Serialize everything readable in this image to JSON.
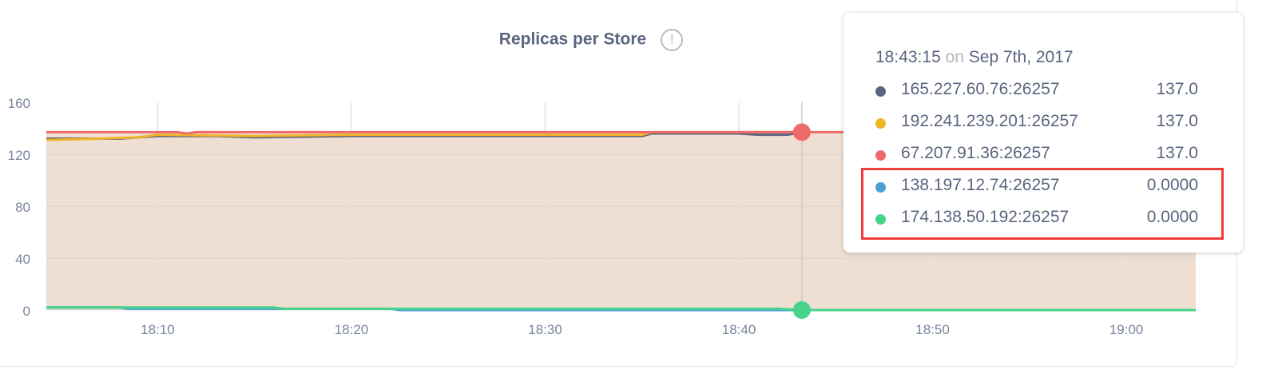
{
  "chart_data": {
    "type": "line",
    "title": "Replicas per Store",
    "title_icon": "info-icon",
    "xlabel": "",
    "ylabel": "",
    "ylim": [
      0,
      160
    ],
    "xlim": [
      "18:04:15",
      "19:03:35"
    ],
    "yticks": [
      "0",
      "40",
      "80",
      "120",
      "160"
    ],
    "xticks": [
      "18:10",
      "18:20",
      "18:30",
      "18:40",
      "18:50",
      "19:00"
    ],
    "grid": true,
    "fill_color": "#efdfd3",
    "series": [
      {
        "name": "165.227.60.76:26257",
        "color": "#5b6580",
        "points": [
          [
            "18:04:15",
            132
          ],
          [
            "18:08:00",
            132
          ],
          [
            "18:10:00",
            134
          ],
          [
            "18:13:00",
            134
          ],
          [
            "18:15:00",
            133
          ],
          [
            "18:20:00",
            134
          ],
          [
            "18:35:00",
            134
          ],
          [
            "18:35:30",
            136
          ],
          [
            "18:40:00",
            136
          ],
          [
            "18:41:00",
            135
          ],
          [
            "18:42:30",
            135
          ],
          [
            "18:43:15",
            137
          ]
        ]
      },
      {
        "name": "192.241.239.201:26257",
        "color": "#f0b429",
        "points": [
          [
            "18:04:15",
            131
          ],
          [
            "18:07:00",
            132
          ],
          [
            "18:09:00",
            133
          ],
          [
            "18:10:00",
            135
          ],
          [
            "18:15:00",
            134
          ],
          [
            "18:20:00",
            135
          ],
          [
            "18:35:00",
            135
          ],
          [
            "18:35:30",
            137
          ],
          [
            "18:43:15",
            137
          ]
        ]
      },
      {
        "name": "67.207.91.36:26257",
        "color": "#ef6a6a",
        "points": [
          [
            "18:04:15",
            137
          ],
          [
            "18:11:00",
            137
          ],
          [
            "18:11:30",
            136
          ],
          [
            "18:12:00",
            137
          ],
          [
            "18:43:15",
            137
          ],
          [
            "19:03:35",
            137
          ]
        ]
      },
      {
        "name": "138.197.12.74:26257",
        "color": "#4a9fd5",
        "points": [
          [
            "18:04:15",
            2
          ],
          [
            "18:08:00",
            2
          ],
          [
            "18:08:30",
            1
          ],
          [
            "18:10:00",
            1
          ],
          [
            "18:22:00",
            1
          ],
          [
            "18:22:30",
            0
          ],
          [
            "19:03:35",
            0
          ]
        ]
      },
      {
        "name": "174.138.50.192:26257",
        "color": "#45d48a",
        "points": [
          [
            "18:04:15",
            2
          ],
          [
            "18:16:00",
            2
          ],
          [
            "18:16:30",
            1
          ],
          [
            "18:42:00",
            1
          ],
          [
            "18:43:15",
            0
          ],
          [
            "19:03:35",
            0
          ]
        ]
      }
    ],
    "crosshair": "18:43:15"
  },
  "tooltip": {
    "time": "18:43:15",
    "on": "on",
    "date": "Sep 7th, 2017",
    "rows": [
      {
        "label": "165.227.60.76:26257",
        "value": "137.0",
        "color": "#5b6580"
      },
      {
        "label": "192.241.239.201:26257",
        "value": "137.0",
        "color": "#f0b429"
      },
      {
        "label": "67.207.91.36:26257",
        "value": "137.0",
        "color": "#ef6a6a"
      },
      {
        "label": "138.197.12.74:26257",
        "value": "0.0000",
        "color": "#4a9fd5"
      },
      {
        "label": "174.138.50.192:26257",
        "value": "0.0000",
        "color": "#45d48a"
      }
    ],
    "highlight_color": "#ef3b3b"
  }
}
